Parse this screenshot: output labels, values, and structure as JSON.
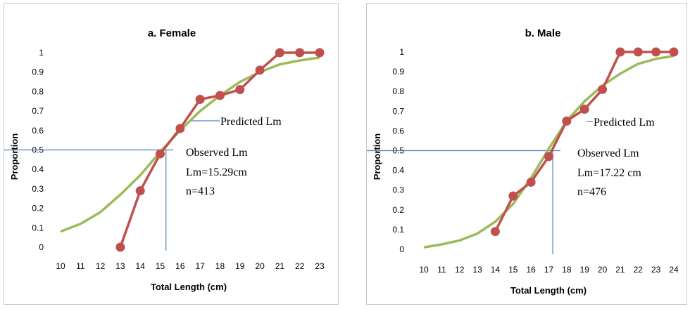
{
  "chart_data": [
    {
      "type": "line",
      "title": "a. Female",
      "xlabel": "Total Length (cm)",
      "ylabel": "Proportion",
      "x": [
        10,
        11,
        12,
        13,
        14,
        15,
        16,
        17,
        18,
        19,
        20,
        21,
        22,
        23
      ],
      "xlim": [
        10,
        23
      ],
      "ylim": [
        0,
        1
      ],
      "yticks": [
        "0",
        "0.1",
        "0.2",
        "0.3",
        "0.4",
        "0.5",
        "0.6",
        "0.7",
        "0.8",
        "0.9",
        "1"
      ],
      "series": [
        {
          "color": "#c0504d",
          "markers": true,
          "x": [
            13,
            14,
            15,
            16,
            17,
            18,
            19,
            20,
            21,
            22,
            23
          ],
          "values": [
            0,
            0.29,
            0.48,
            0.61,
            0.76,
            0.78,
            0.81,
            0.91,
            1,
            1,
            1
          ]
        },
        {
          "color": "#9bbb59",
          "markers": false,
          "x": [
            10,
            11,
            12,
            13,
            14,
            15,
            16,
            17,
            18,
            19,
            20,
            21,
            22,
            23
          ],
          "values": [
            0.08,
            0.12,
            0.18,
            0.27,
            0.37,
            0.49,
            0.6,
            0.7,
            0.78,
            0.85,
            0.9,
            0.94,
            0.96,
            0.975
          ]
        }
      ],
      "lm_x": 15.29,
      "lm_y": 0.5,
      "reference_line_color": "#4f81bd",
      "annotations": {
        "predicted": "Predicted Lm",
        "observed": "Observed Lm",
        "lm_value": "Lm=15.29cm",
        "n": "n=413"
      }
    },
    {
      "type": "line",
      "title": "b. Male",
      "xlabel": "Total Length (cm)",
      "ylabel": "Proportion",
      "x": [
        10,
        11,
        12,
        13,
        14,
        15,
        16,
        17,
        18,
        19,
        20,
        21,
        22,
        23,
        24
      ],
      "xlim": [
        10,
        24
      ],
      "ylim": [
        0,
        1
      ],
      "yticks": [
        "0",
        "0.1",
        "0.2",
        "0.3",
        "0.4",
        "0.5",
        "0.6",
        "0.7",
        "0.8",
        "0.9",
        "1"
      ],
      "series": [
        {
          "color": "#c0504d",
          "markers": true,
          "x": [
            14,
            15,
            16,
            17,
            18,
            19,
            20,
            21,
            22,
            23,
            24
          ],
          "values": [
            0.09,
            0.27,
            0.34,
            0.47,
            0.65,
            0.71,
            0.81,
            1,
            1,
            1,
            1
          ]
        },
        {
          "color": "#9bbb59",
          "markers": false,
          "x": [
            10,
            11,
            12,
            13,
            14,
            15,
            16,
            17,
            18,
            19,
            20,
            21,
            22,
            23,
            24
          ],
          "values": [
            0.01,
            0.025,
            0.045,
            0.08,
            0.14,
            0.23,
            0.36,
            0.51,
            0.65,
            0.75,
            0.83,
            0.89,
            0.94,
            0.965,
            0.98
          ]
        }
      ],
      "lm_x": 17.22,
      "lm_y": 0.5,
      "reference_line_color": "#4f81bd",
      "annotations": {
        "predicted": "Predicted Lm",
        "observed": "Observed Lm",
        "lm_value": "Lm=17.22 cm",
        "n": "n=476"
      }
    }
  ]
}
